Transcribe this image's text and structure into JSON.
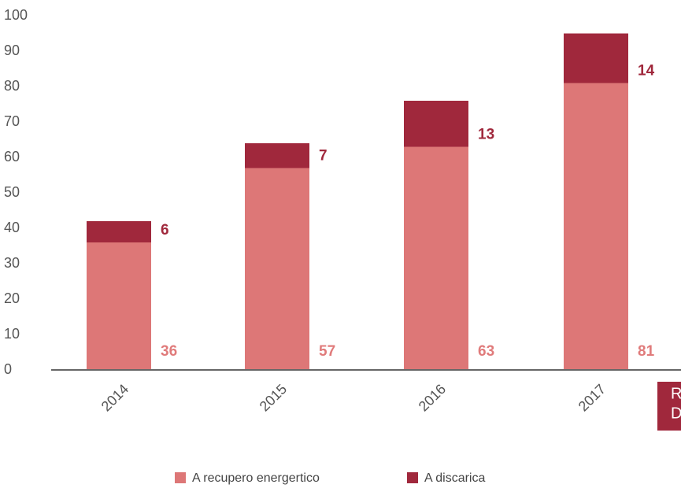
{
  "chart_data": {
    "type": "stacked_bar",
    "categories": [
      "2014",
      "2015",
      "2016",
      "2017"
    ],
    "series": [
      {
        "name": "A recupero energertico",
        "color": "#dd7777",
        "label_color": "#e07b7b",
        "values": [
          36,
          57,
          63,
          81
        ]
      },
      {
        "name": "A discarica",
        "color": "#a0283c",
        "label_color": "#a0283c",
        "values": [
          6,
          7,
          13,
          14
        ]
      }
    ],
    "ylim": [
      0,
      100
    ],
    "yticks": [
      0,
      10,
      20,
      30,
      40,
      50,
      60,
      70,
      80,
      90,
      100
    ],
    "grid": false,
    "legend": "bottom",
    "cut_off_text": [
      "R",
      "D"
    ]
  }
}
